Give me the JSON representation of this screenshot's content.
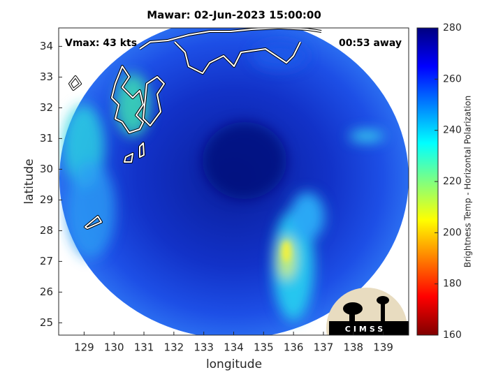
{
  "chart_data": {
    "type": "image",
    "title": "Mawar: 02-Jun-2023 15:00:00",
    "annotations": [
      "Vmax: 43 kts",
      "00:53 away"
    ],
    "xlabel": "longitude",
    "ylabel": "latitude",
    "xlim": [
      128.15,
      139.85
    ],
    "xticks": [
      129,
      130,
      131,
      132,
      133,
      134,
      135,
      136,
      137,
      138,
      139
    ],
    "ylim": [
      24.6,
      34.6
    ],
    "yticks": [
      25,
      26,
      27,
      28,
      29,
      30,
      31,
      32,
      33,
      34
    ],
    "colorbar": {
      "label": "Brightness Temp - Horizontal Polarization",
      "clim": [
        160,
        280
      ],
      "ticks": [
        160,
        180,
        200,
        220,
        240,
        260,
        280
      ],
      "colormap": [
        "#800000",
        "#ff0000",
        "#ff8000",
        "#ffff00",
        "#80ff80",
        "#00ffff",
        "#0080ff",
        "#0000ff",
        "#000080"
      ]
    },
    "logo": "CIMSS"
  }
}
